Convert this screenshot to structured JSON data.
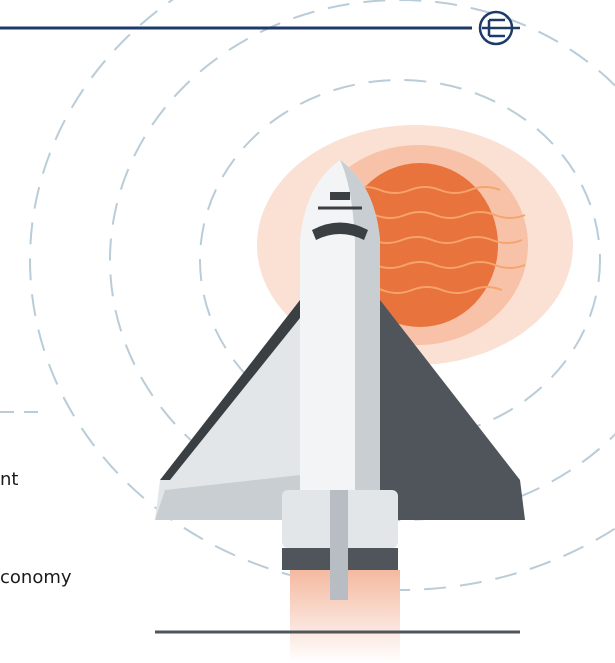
{
  "text_fragments": [
    "nt",
    "conomy"
  ]
}
